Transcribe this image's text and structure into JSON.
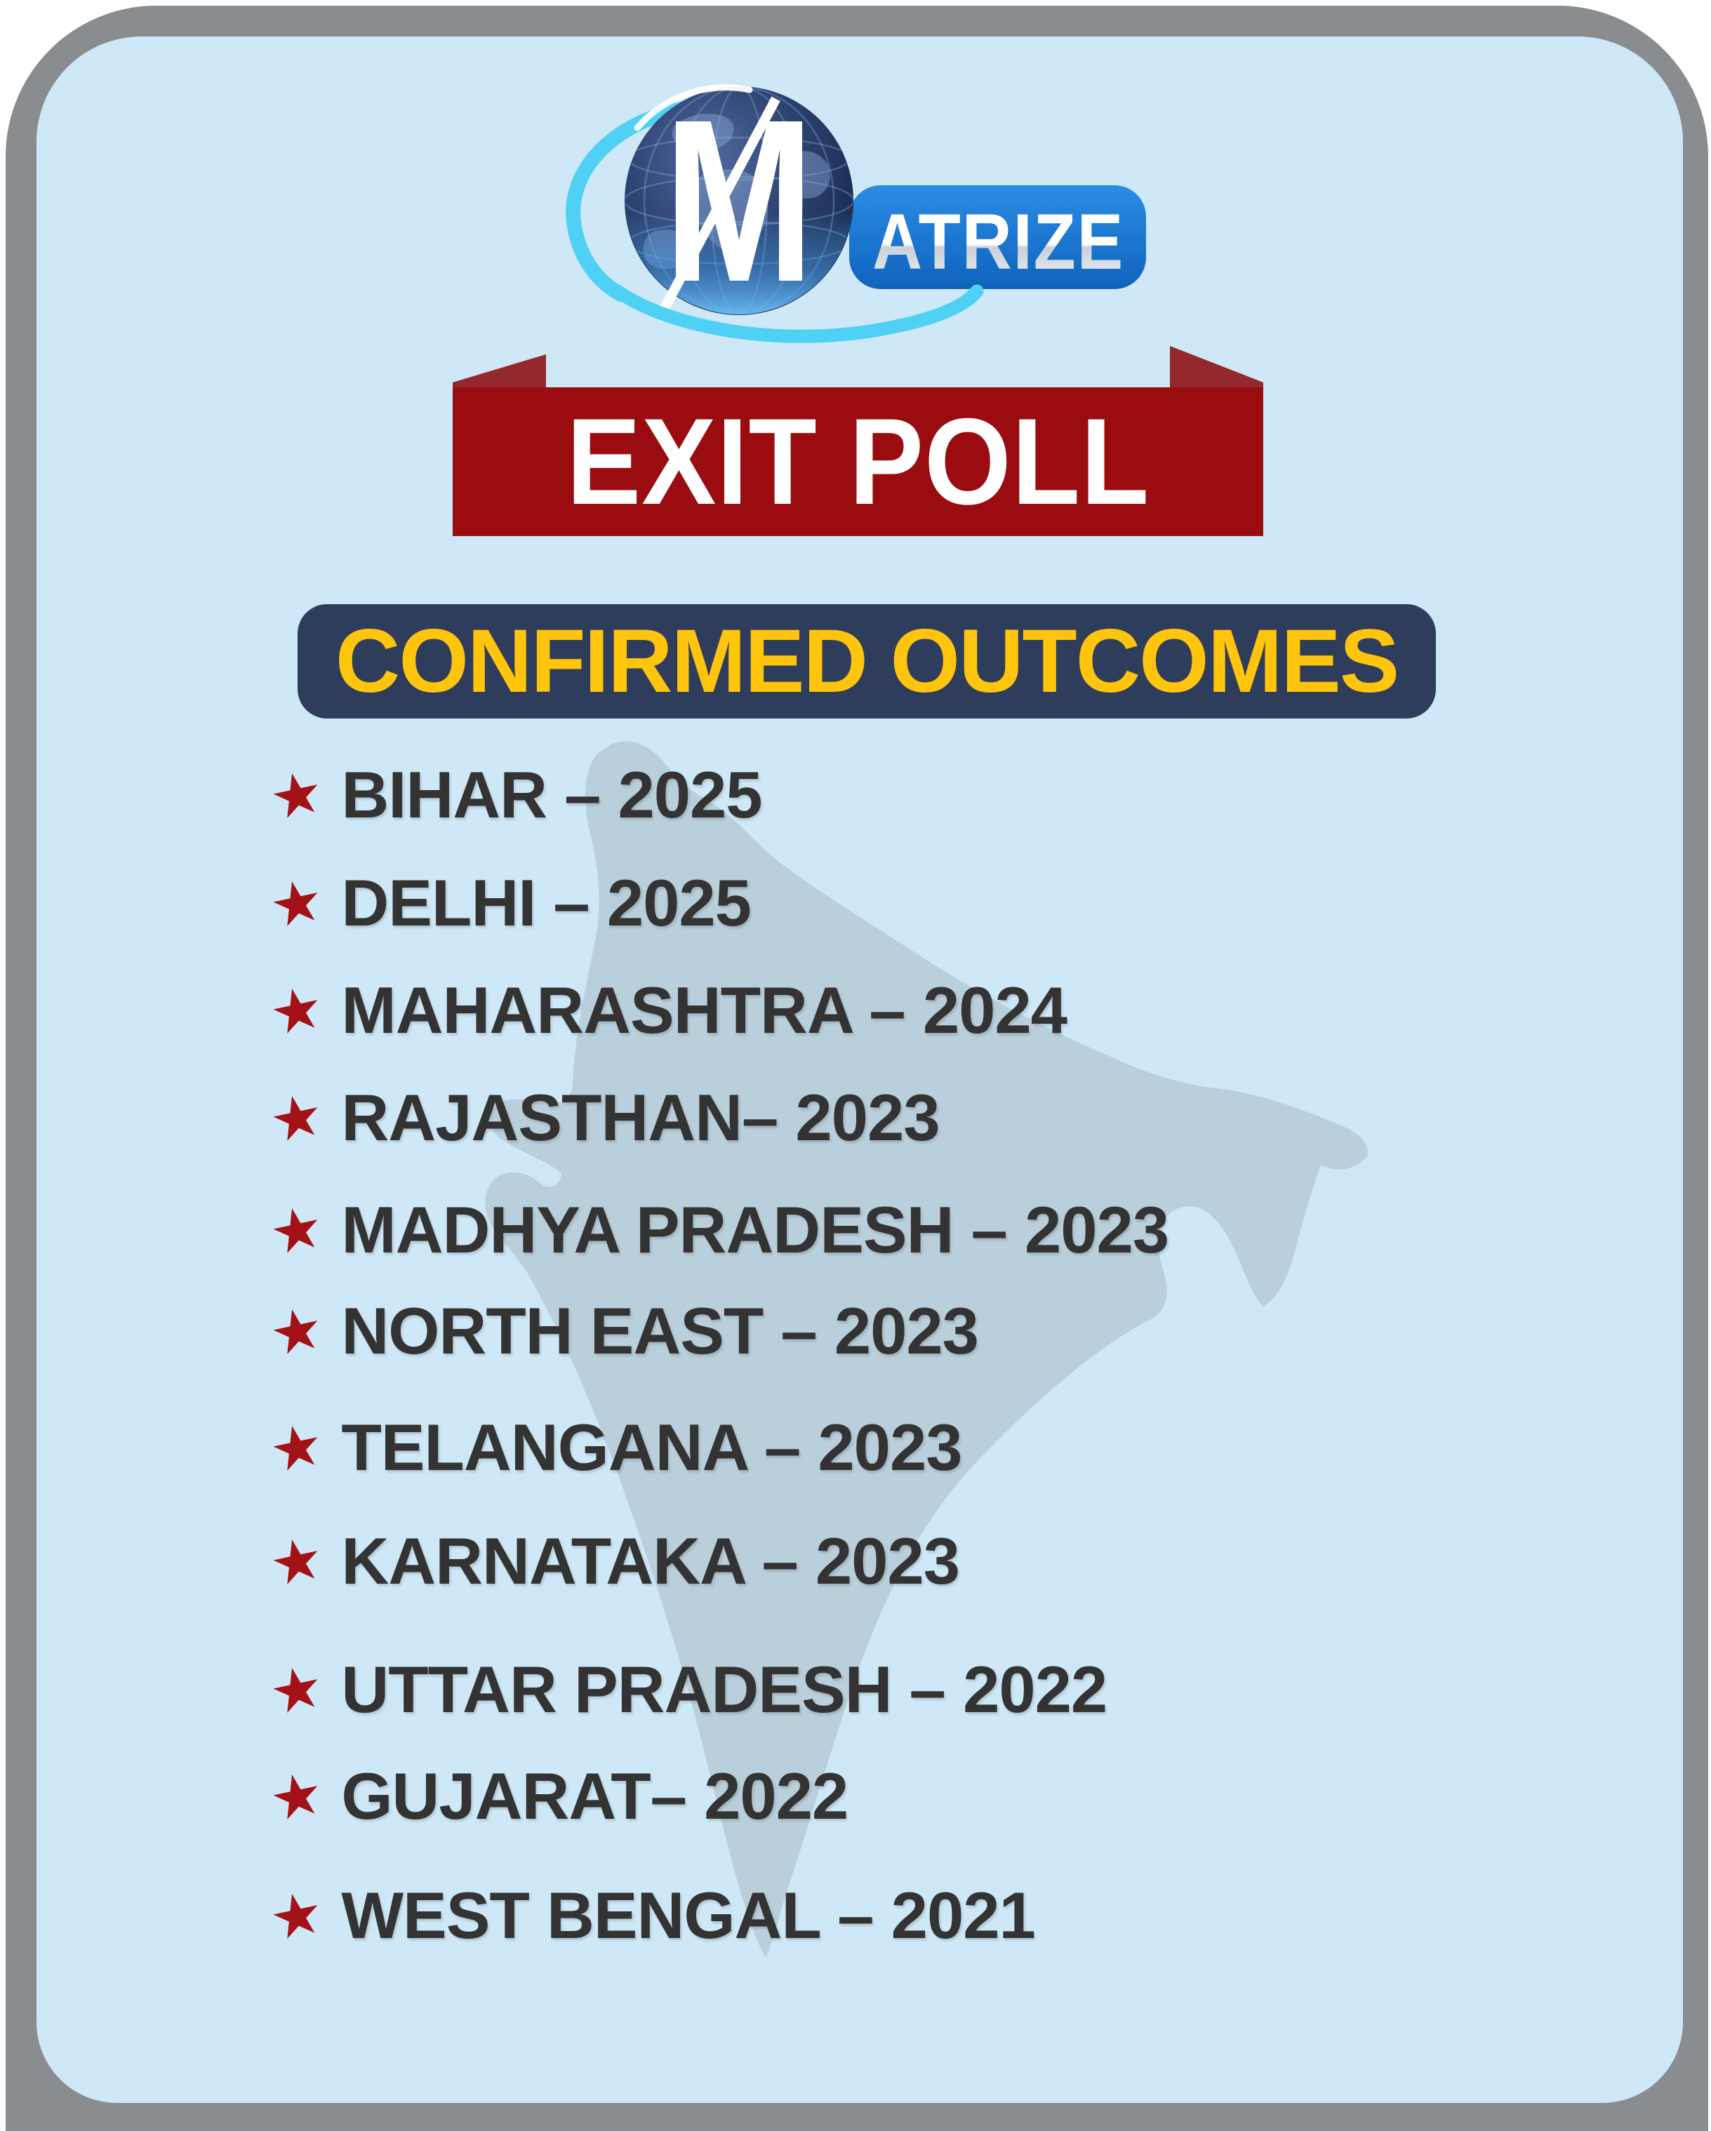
{
  "brand": {
    "name": "MATRIZE",
    "logo_mark": "M",
    "logo_word": "ATRIZE"
  },
  "header": {
    "banner_title": "EXIT POLL",
    "section_title": "CONFIRMED OUTCOMES"
  },
  "outcomes": [
    {
      "text": "BIHAR – 2025"
    },
    {
      "text": "DELHI – 2025"
    },
    {
      "text": "MAHARASHTRA – 2024"
    },
    {
      "text": "RAJASTHAN– 2023"
    },
    {
      "text": "MADHYA PRADESH – 2023"
    },
    {
      "text": "NORTH EAST – 2023"
    },
    {
      "text": "TELANGANA – 2023"
    },
    {
      "text": "KARNATAKA – 2023"
    },
    {
      "text": "UTTAR PRADESH – 2022"
    },
    {
      "text": "GUJARAT– 2022"
    },
    {
      "text": "WEST BENGAL – 2021"
    }
  ],
  "icons": {
    "bullet": "star-icon",
    "star_glyph": "★"
  },
  "graphics": {
    "background_art": "india-map-silhouette",
    "logo_art": "globe-with-orbit-swoosh"
  },
  "colors": {
    "page_outside": "#ffffff",
    "frame_gray": "#8a8d8f",
    "card_blue": "#cfe8f7",
    "map_silhouette": "#b9cfdb",
    "banner_red": "#9a0c10",
    "banner_fold_red": "#93292c",
    "navy_box": "#2f3d5c",
    "headline_yellow": "#ffc40c",
    "star_red": "#a31217",
    "list_text": "#333333",
    "logo_box_blue": "#1b79d5",
    "swoosh_cyan": "#4fd0f5"
  }
}
